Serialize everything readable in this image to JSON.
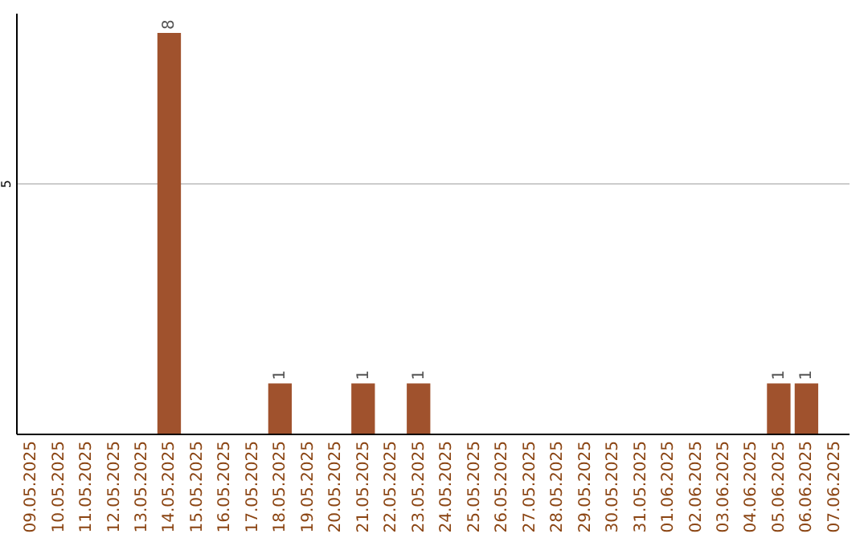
{
  "chart_data": {
    "type": "bar",
    "categories": [
      "09.05.2025",
      "10.05.2025",
      "11.05.2025",
      "12.05.2025",
      "13.05.2025",
      "14.05.2025",
      "15.05.2025",
      "16.05.2025",
      "17.05.2025",
      "18.05.2025",
      "19.05.2025",
      "20.05.2025",
      "21.05.2025",
      "22.05.2025",
      "23.05.2025",
      "24.05.2025",
      "25.05.2025",
      "26.05.2025",
      "27.05.2025",
      "28.05.2025",
      "29.05.2025",
      "30.05.2025",
      "31.05.2025",
      "01.06.2025",
      "02.06.2025",
      "03.06.2025",
      "04.06.2025",
      "05.06.2025",
      "06.06.2025",
      "07.06.2025"
    ],
    "values": [
      null,
      null,
      null,
      null,
      null,
      8,
      null,
      null,
      null,
      1,
      null,
      null,
      1,
      null,
      1,
      null,
      null,
      null,
      null,
      null,
      null,
      null,
      null,
      null,
      null,
      null,
      null,
      1,
      1,
      null
    ],
    "color": "#a0522d",
    "ylim": [
      0,
      8.4
    ],
    "yticks": [
      5
    ],
    "grid": "y",
    "data_labels": true
  }
}
